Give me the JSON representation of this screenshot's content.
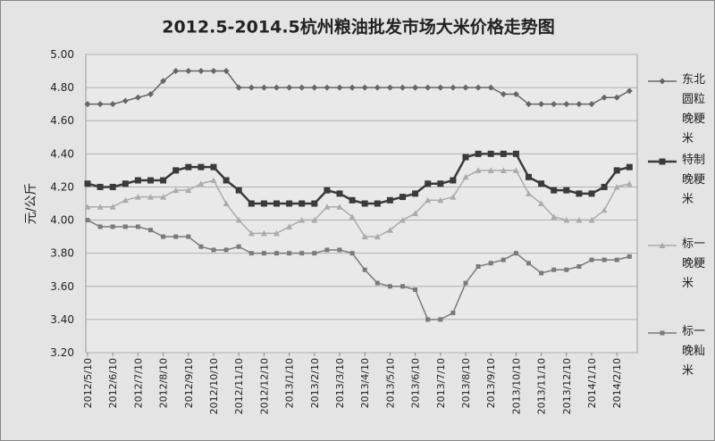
{
  "chart_data": {
    "type": "line",
    "title": "2012.5-2014.5杭州粮油批发市场大米价格走势图",
    "y_label": "元/公斤",
    "categories": [
      "2012/5/10",
      null,
      "2012/6/10",
      null,
      "2012/7/10",
      null,
      "2012/8/10",
      null,
      "2012/9/10",
      null,
      "2012/10/10",
      null,
      "2012/11/10",
      null,
      "2012/12/10",
      null,
      "2013/1/10",
      null,
      "2013/2/10",
      null,
      "2013/3/10",
      null,
      "2013/4/10",
      null,
      "2013/5/10",
      null,
      "2013/6/10",
      null,
      "2013/7/10",
      null,
      "2013/8/10",
      null,
      "2013/9/10",
      null,
      "2013/10/10",
      null,
      "2013/11/10",
      null,
      "2013/12/10",
      null,
      "2014/1/10",
      null,
      "2014/2/10",
      null
    ],
    "series": [
      {
        "name": "东北圆粒晚粳米",
        "color": "#666666",
        "marker": "diamond",
        "values": [
          4.7,
          4.7,
          4.7,
          4.72,
          4.74,
          4.76,
          4.84,
          4.9,
          4.9,
          4.9,
          4.9,
          4.9,
          4.8,
          4.8,
          4.8,
          4.8,
          4.8,
          4.8,
          4.8,
          4.8,
          4.8,
          4.8,
          4.8,
          4.8,
          4.8,
          4.8,
          4.8,
          4.8,
          4.8,
          4.8,
          4.8,
          4.8,
          4.8,
          4.76,
          4.76,
          4.7,
          4.7,
          4.7,
          4.7,
          4.7,
          4.7,
          4.74,
          4.74,
          4.78
        ]
      },
      {
        "name": "特制晚粳米",
        "color": "#3a3a3a",
        "marker": "square",
        "values": [
          4.22,
          4.2,
          4.2,
          4.22,
          4.24,
          4.24,
          4.24,
          4.3,
          4.32,
          4.32,
          4.32,
          4.24,
          4.18,
          4.1,
          4.1,
          4.1,
          4.1,
          4.1,
          4.1,
          4.18,
          4.16,
          4.12,
          4.1,
          4.1,
          4.12,
          4.14,
          4.16,
          4.22,
          4.22,
          4.24,
          4.38,
          4.4,
          4.4,
          4.4,
          4.4,
          4.26,
          4.22,
          4.18,
          4.18,
          4.16,
          4.16,
          4.2,
          4.3,
          4.32
        ]
      },
      {
        "name": "标一晚粳米",
        "color": "#ababab",
        "marker": "triangle",
        "values": [
          4.08,
          4.08,
          4.08,
          4.12,
          4.14,
          4.14,
          4.14,
          4.18,
          4.18,
          4.22,
          4.24,
          4.1,
          4.0,
          3.92,
          3.92,
          3.92,
          3.96,
          4.0,
          4.0,
          4.08,
          4.08,
          4.02,
          3.9,
          3.9,
          3.94,
          4.0,
          4.04,
          4.12,
          4.12,
          4.14,
          4.26,
          4.3,
          4.3,
          4.3,
          4.3,
          4.16,
          4.1,
          4.02,
          4.0,
          4.0,
          4.0,
          4.06,
          4.2,
          4.22
        ]
      },
      {
        "name": "标一晚籼米",
        "color": "#7a7a7a",
        "marker": "smallsquare",
        "values": [
          4.0,
          3.96,
          3.96,
          3.96,
          3.96,
          3.94,
          3.9,
          3.9,
          3.9,
          3.84,
          3.82,
          3.82,
          3.84,
          3.8,
          3.8,
          3.8,
          3.8,
          3.8,
          3.8,
          3.82,
          3.82,
          3.8,
          3.7,
          3.62,
          3.6,
          3.6,
          3.58,
          3.4,
          3.4,
          3.44,
          3.62,
          3.72,
          3.74,
          3.76,
          3.8,
          3.74,
          3.68,
          3.7,
          3.7,
          3.72,
          3.76,
          3.76,
          3.76,
          3.78
        ]
      }
    ],
    "ylim": [
      3.2,
      5.0
    ],
    "yticks": [
      {
        "value": 3.2,
        "label": "3.20"
      },
      {
        "value": 3.4,
        "label": "3.40"
      },
      {
        "value": 3.6,
        "label": "3.60"
      },
      {
        "value": 3.8,
        "label": "3.80"
      },
      {
        "value": 4.0,
        "label": "4.00"
      },
      {
        "value": 4.2,
        "label": "4.20"
      },
      {
        "value": 4.4,
        "label": "4.40"
      },
      {
        "value": 4.6,
        "label": "4.60"
      },
      {
        "value": 4.8,
        "label": "4.80"
      },
      {
        "value": 5.0,
        "label": "5.00"
      }
    ],
    "grid": true
  }
}
